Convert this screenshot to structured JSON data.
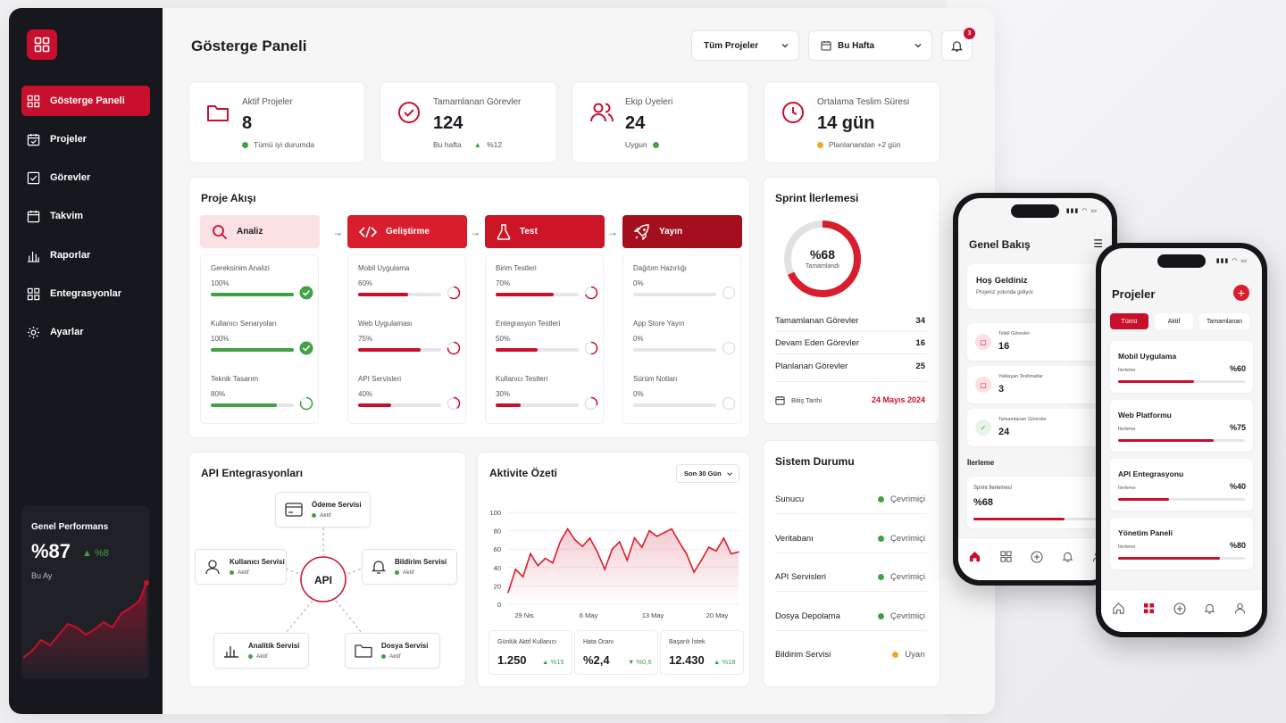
{
  "app": {
    "title": "Gösterge Paneli"
  },
  "sidebar": {
    "items": [
      {
        "label": "Gösterge Paneli",
        "icon": "grid-icon",
        "active": true
      },
      {
        "label": "Projeler",
        "icon": "calendar-check-icon"
      },
      {
        "label": "Görevler",
        "icon": "checkbox-icon"
      },
      {
        "label": "Takvim",
        "icon": "calendar-icon"
      },
      {
        "label": "Raporlar",
        "icon": "bar-chart-icon"
      },
      {
        "label": "Entegrasyonlar",
        "icon": "grid-icon"
      },
      {
        "label": "Ayarlar",
        "icon": "gear-icon"
      }
    ],
    "performance": {
      "title": "Genel Performans",
      "value": "%87",
      "delta": "%8",
      "period": "Bu Ay"
    }
  },
  "header": {
    "project_filter": "Tüm Projeler",
    "period_filter": "Bu Hafta",
    "notification_count": "3"
  },
  "stats": [
    {
      "label": "Aktif Projeler",
      "value": "8",
      "sub": "Tümü iyi durumda",
      "icon": "folder-icon"
    },
    {
      "label": "Tamamlanan Görevler",
      "value": "124",
      "sub": "Bu hafta",
      "delta": "%12",
      "icon": "check-circle-icon"
    },
    {
      "label": "Ekip Üyeleri",
      "value": "24",
      "sub": "Uygun",
      "icon": "users-icon"
    },
    {
      "label": "Ortalama Teslim Süresi",
      "value": "14 gün",
      "sub": "Planlanandan +2 gün",
      "icon": "clock-icon"
    }
  ],
  "flow": {
    "title": "Proje Akışı",
    "stages": [
      {
        "label": "Analiz",
        "tasks": [
          {
            "name": "Gereksinim Analizi",
            "pct": "100%",
            "v": 100,
            "state": "done"
          },
          {
            "name": "Kullanıcı Senaryoları",
            "pct": "100%",
            "v": 100,
            "state": "done"
          },
          {
            "name": "Teknik Tasarım",
            "pct": "80%",
            "v": 80,
            "state": "progress"
          }
        ]
      },
      {
        "label": "Geliştirme",
        "tasks": [
          {
            "name": "Mobil Uygulama",
            "pct": "60%",
            "v": 60
          },
          {
            "name": "Web Uygulaması",
            "pct": "75%",
            "v": 75
          },
          {
            "name": "API Servisleri",
            "pct": "40%",
            "v": 40
          }
        ]
      },
      {
        "label": "Test",
        "tasks": [
          {
            "name": "Birim Testleri",
            "pct": "70%",
            "v": 70
          },
          {
            "name": "Entegrasyon Testleri",
            "pct": "50%",
            "v": 50
          },
          {
            "name": "Kullanıcı Testleri",
            "pct": "30%",
            "v": 30
          }
        ]
      },
      {
        "label": "Yayın",
        "tasks": [
          {
            "name": "Dağıtım Hazırlığı",
            "pct": "0%",
            "v": 0
          },
          {
            "name": "App Store Yayın",
            "pct": "0%",
            "v": 0
          },
          {
            "name": "Sürüm Notları",
            "pct": "0%",
            "v": 0
          }
        ]
      }
    ]
  },
  "sprint": {
    "title": "Sprint İlerlemesi",
    "percent": "%68",
    "percent_value": 68,
    "center_label": "Tamamlandı",
    "rows": [
      {
        "label": "Tamamlanan Görevler",
        "value": "34"
      },
      {
        "label": "Devam Eden Görevler",
        "value": "16"
      },
      {
        "label": "Planlanan Görevler",
        "value": "25"
      }
    ],
    "end_label": "Bitiş Tarihi",
    "end_date": "24 Mayıs 2024"
  },
  "api": {
    "title": "API Entegrasyonları",
    "center": "API",
    "nodes": [
      {
        "name": "Ödeme Servisi",
        "status": "Aktif"
      },
      {
        "name": "Kullanıcı Servisi",
        "status": "Aktif"
      },
      {
        "name": "Bildirim Servisi",
        "status": "Aktif"
      },
      {
        "name": "Analitik Servisi",
        "status": "Aktif"
      },
      {
        "name": "Dosya Servisi",
        "status": "Aktif"
      }
    ]
  },
  "activity": {
    "title": "Aktivite Özeti",
    "range": "Son 30 Gün",
    "metrics": [
      {
        "label": "Günlük Aktif Kullanıcı",
        "value": "1.250",
        "delta": "%15",
        "up": true
      },
      {
        "label": "Hata Oranı",
        "value": "%2,4",
        "delta": "%0,6",
        "up": false
      },
      {
        "label": "Başarılı İstek",
        "value": "12.430",
        "delta": "%18",
        "up": true
      }
    ]
  },
  "chart_data": {
    "type": "area",
    "title": "Aktivite Özeti",
    "yticks": [
      "100",
      "80",
      "60",
      "40",
      "20",
      "0"
    ],
    "ylim": [
      0,
      100
    ],
    "xticks": [
      "29 Nis",
      "6 May",
      "13 May",
      "20 May"
    ],
    "values": [
      13,
      38,
      30,
      55,
      42,
      50,
      45,
      68,
      82,
      70,
      63,
      72,
      57,
      38,
      60,
      68,
      48,
      72,
      62,
      80,
      74,
      78,
      82,
      68,
      55,
      35,
      48,
      62,
      58,
      72,
      55,
      57
    ]
  },
  "system": {
    "title": "Sistem Durumu",
    "services": [
      {
        "name": "Sunucu",
        "status": "Çevrimiçi",
        "color": "#43a047"
      },
      {
        "name": "Veritabanı",
        "status": "Çevrimiçi",
        "color": "#43a047"
      },
      {
        "name": "API Servisleri",
        "status": "Çevrimiçi",
        "color": "#43a047"
      },
      {
        "name": "Dosya Depolama",
        "status": "Çevrimiçi",
        "color": "#43a047"
      },
      {
        "name": "Bildirim Servisi",
        "status": "Uyarı",
        "color": "#f4a623"
      }
    ]
  },
  "phone1": {
    "title": "Genel Bakış",
    "welcome": "Hoş Geldiniz",
    "welcome_sub": "Projeniz yolunda gidiyor.",
    "stats": [
      {
        "label": "Tetkil Görevler",
        "value": "16"
      },
      {
        "label": "Yaklaşan Teslimatlar",
        "value": "3"
      },
      {
        "label": "Tamamlanan Görevler",
        "value": "24"
      }
    ],
    "progress_title": "İlerleme",
    "sprint_label": "Sprint İlerlemesi",
    "sprint_value": "%68",
    "sprint_pct": 68
  },
  "phone2": {
    "title": "Projeler",
    "tabs": [
      "Tümü",
      "Aktif",
      "Tamamlanan"
    ],
    "projects": [
      {
        "name": "Mobil Uygulama",
        "label": "İlerleme",
        "pct": "%60",
        "v": 60
      },
      {
        "name": "Web Platformu",
        "label": "İlerleme",
        "pct": "%75",
        "v": 75
      },
      {
        "name": "API Entegrasyonu",
        "label": "İlerleme",
        "pct": "%40",
        "v": 40
      },
      {
        "name": "Yönetim Paneli",
        "label": "İlerleme",
        "pct": "%80",
        "v": 80
      }
    ]
  },
  "colors": {
    "accent": "#c8102e",
    "success": "#43a047",
    "warning": "#f4a623",
    "sidebar": "#16181d"
  }
}
